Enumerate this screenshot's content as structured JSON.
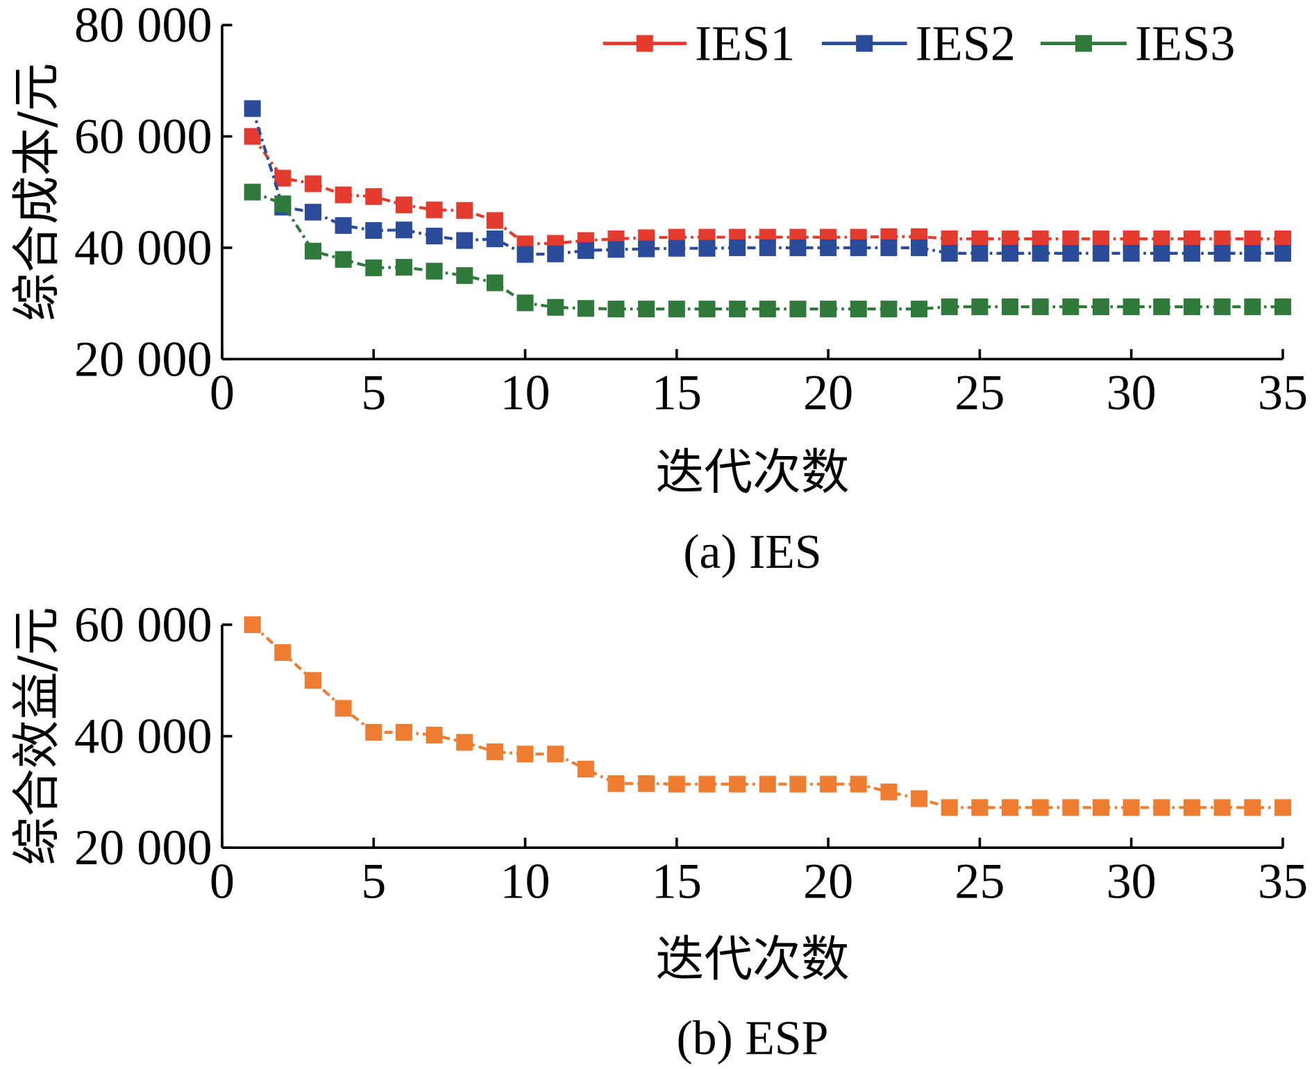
{
  "chart_data": [
    {
      "type": "line",
      "caption": "(a) IES",
      "xlabel": "迭代次数",
      "ylabel": "综合成本/元",
      "xlim": [
        0,
        35
      ],
      "ylim": [
        20000,
        80000
      ],
      "xticks": [
        0,
        5,
        10,
        15,
        20,
        25,
        30,
        35
      ],
      "xtick_labels": [
        "0",
        "5",
        "10",
        "15",
        "20",
        "25",
        "30",
        "35"
      ],
      "yticks": [
        20000,
        40000,
        60000,
        80000
      ],
      "ytick_labels": [
        "20 000",
        "40 000",
        "60 000",
        "80 000"
      ],
      "grid": false,
      "legend": "top-right",
      "marker": "square",
      "line_style": "dash-dot",
      "x": [
        1,
        2,
        3,
        4,
        5,
        6,
        7,
        8,
        9,
        10,
        11,
        12,
        13,
        14,
        15,
        16,
        17,
        18,
        19,
        20,
        21,
        22,
        23,
        24,
        25,
        26,
        27,
        28,
        29,
        30,
        31,
        32,
        33,
        34,
        35
      ],
      "series": [
        {
          "name": "IES1",
          "color": "#e53b2e",
          "values": [
            60000,
            52500,
            51500,
            49500,
            49200,
            47700,
            46800,
            46700,
            44900,
            40700,
            40800,
            41300,
            41600,
            41800,
            41900,
            41900,
            41900,
            41900,
            41900,
            41900,
            41900,
            42000,
            42000,
            41600,
            41600,
            41600,
            41600,
            41600,
            41600,
            41600,
            41600,
            41600,
            41600,
            41600,
            41600
          ]
        },
        {
          "name": "IES2",
          "color": "#2b4c9b",
          "values": [
            65000,
            47300,
            46400,
            44000,
            43100,
            43200,
            42100,
            41300,
            41600,
            38800,
            38900,
            39500,
            39700,
            39800,
            39900,
            39900,
            40000,
            40000,
            40000,
            40000,
            40000,
            40000,
            40000,
            39000,
            39000,
            39000,
            39000,
            39000,
            39000,
            39000,
            39000,
            39000,
            39000,
            39000,
            39000
          ]
        },
        {
          "name": "IES3",
          "color": "#2f7a3a",
          "values": [
            50000,
            47900,
            39400,
            37900,
            36400,
            36500,
            35800,
            35000,
            33700,
            30100,
            29300,
            29100,
            29000,
            29000,
            29000,
            29000,
            29000,
            29000,
            29000,
            29000,
            29000,
            29000,
            29000,
            29400,
            29400,
            29400,
            29400,
            29400,
            29400,
            29400,
            29400,
            29400,
            29400,
            29400,
            29400
          ]
        }
      ]
    },
    {
      "type": "line",
      "caption": "(b) ESP",
      "xlabel": "迭代次数",
      "ylabel": "综合效益/元",
      "xlim": [
        0,
        35
      ],
      "ylim": [
        20000,
        60000
      ],
      "xticks": [
        0,
        5,
        10,
        15,
        20,
        25,
        30,
        35
      ],
      "xtick_labels": [
        "0",
        "5",
        "10",
        "15",
        "20",
        "25",
        "30",
        "35"
      ],
      "yticks": [
        20000,
        40000,
        60000
      ],
      "ytick_labels": [
        "20 000",
        "40 000",
        "60 000"
      ],
      "grid": false,
      "marker": "square",
      "line_style": "dash-dot",
      "x": [
        1,
        2,
        3,
        4,
        5,
        6,
        7,
        8,
        9,
        10,
        11,
        12,
        13,
        14,
        15,
        16,
        17,
        18,
        19,
        20,
        21,
        22,
        23,
        24,
        25,
        26,
        27,
        28,
        29,
        30,
        31,
        32,
        33,
        34,
        35
      ],
      "series": [
        {
          "color": "#ee7d32",
          "values": [
            60000,
            55000,
            50000,
            45000,
            40700,
            40700,
            40200,
            38900,
            37200,
            36800,
            36800,
            34100,
            31500,
            31500,
            31400,
            31400,
            31400,
            31400,
            31400,
            31400,
            31400,
            30000,
            28800,
            27200,
            27200,
            27200,
            27200,
            27200,
            27200,
            27200,
            27200,
            27200,
            27200,
            27200,
            27200
          ]
        }
      ]
    }
  ]
}
